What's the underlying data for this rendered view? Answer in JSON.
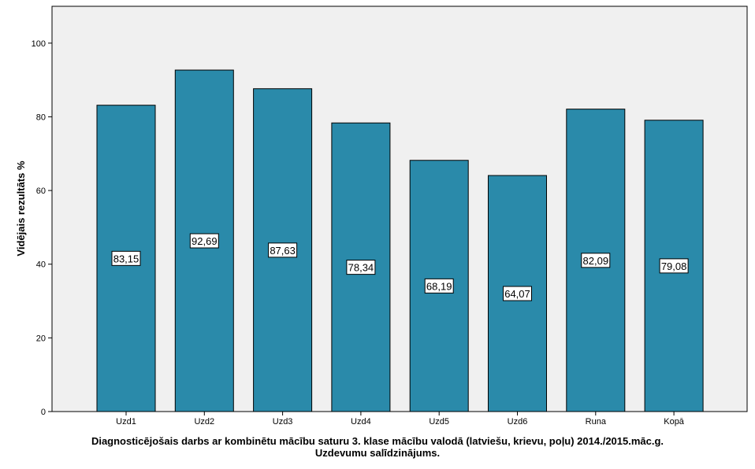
{
  "chart_data": {
    "type": "bar",
    "categories": [
      "Uzd1",
      "Uzd2",
      "Uzd3",
      "Uzd4",
      "Uzd5",
      "Uzd6",
      "Runa",
      "Kopā"
    ],
    "values": [
      83.15,
      92.69,
      87.63,
      78.34,
      68.19,
      64.07,
      82.09,
      79.08
    ],
    "data_labels": [
      "83,15",
      "92,69",
      "87,63",
      "78,34",
      "68,19",
      "64,07",
      "82,09",
      "79,08"
    ],
    "xlabel_line1": "Diagnosticējošais darbs ar kombinētu mācību saturu 3. klase mācību valodā (latviešu, krievu, poļu) 2014./2015.māc.g.",
    "xlabel_line2": "Uzdevumu salīdzinājums.",
    "ylabel": "Vidējais rezultāts %",
    "ylim": [
      0,
      110
    ],
    "yticks": [
      0,
      20,
      40,
      60,
      80,
      100
    ],
    "grid": false,
    "colors": {
      "bar": "#2A8AAA",
      "plot_bg": "#F0F0F0",
      "bar_edge": "#000000"
    }
  }
}
